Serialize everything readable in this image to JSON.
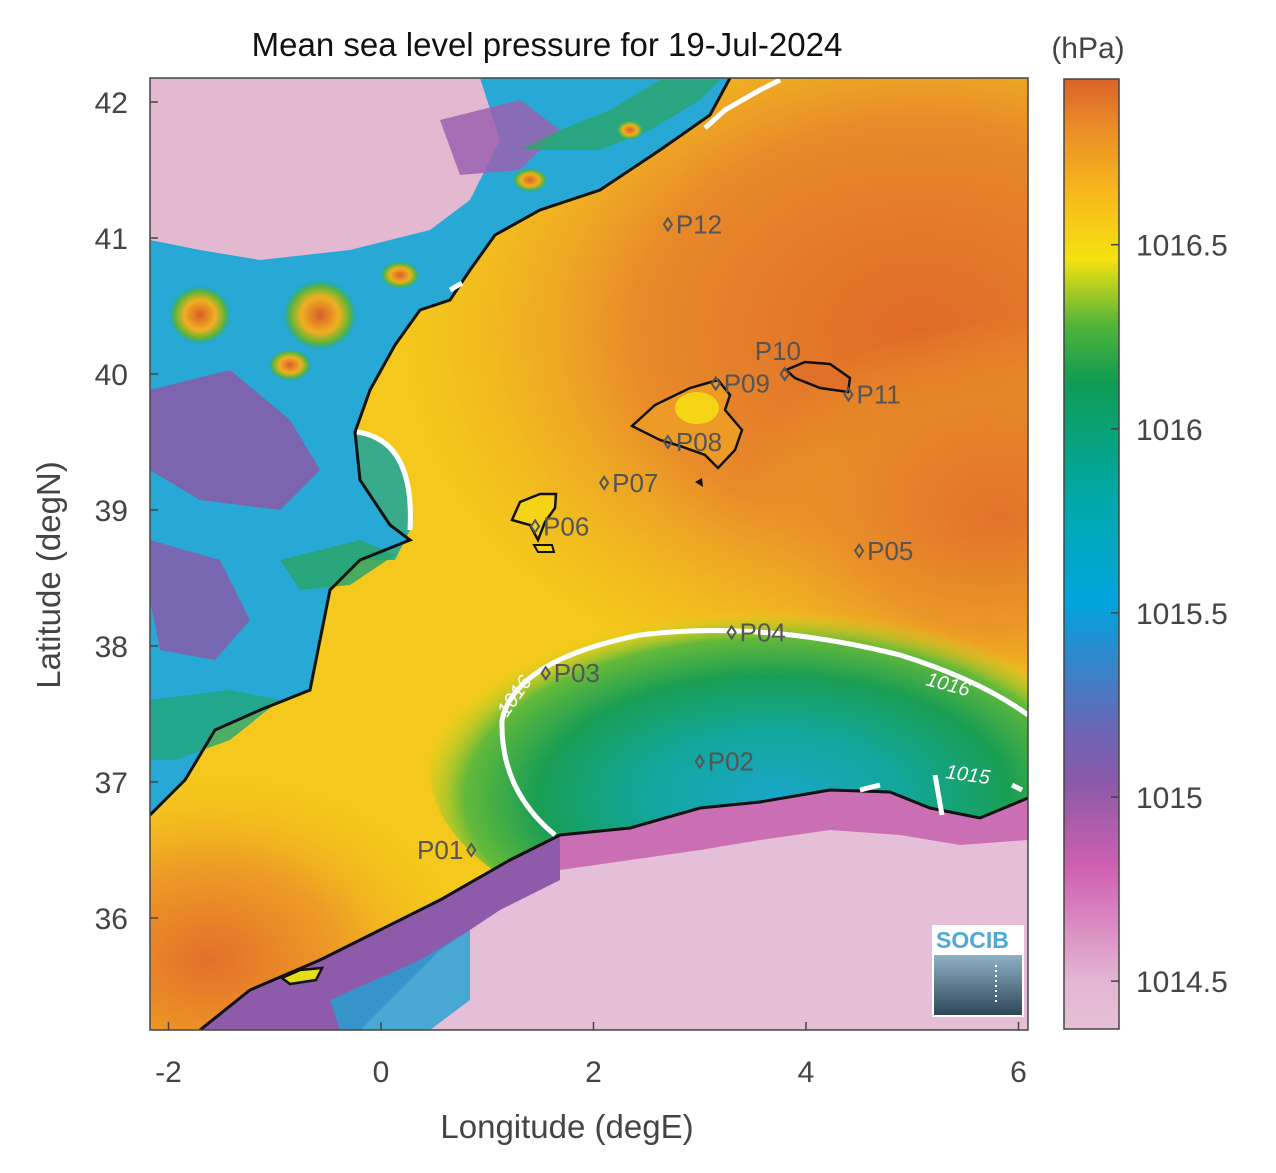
{
  "title": "Mean sea level pressure for 19-Jul-2024",
  "xlabel": "Longitude (degE)",
  "ylabel": "Latitude (degN)",
  "colorbar": {
    "unit": "(hPa)",
    "min": 1014.37,
    "max": 1016.95,
    "ticks": [
      "1014.5",
      "1015",
      "1015.5",
      "1016",
      "1016.5"
    ],
    "colors": [
      "#e6bfd8",
      "#cf60b0",
      "#7f5aa8",
      "#00a4dd",
      "#00a88a",
      "#22a33a",
      "#f5e20f",
      "#f6b81c",
      "#eb8b28",
      "#da6327"
    ]
  },
  "x_ticks": [
    "-2",
    "0",
    "2",
    "4",
    "6"
  ],
  "y_ticks": [
    "36",
    "37",
    "38",
    "39",
    "40",
    "41",
    "42"
  ],
  "contour_labels": [
    "1016",
    "1016",
    "1015"
  ],
  "stations": [
    {
      "name": "P01",
      "lon": 0.85,
      "lat": 36.5
    },
    {
      "name": "P02",
      "lon": 3.0,
      "lat": 37.15
    },
    {
      "name": "P03",
      "lon": 1.55,
      "lat": 37.8
    },
    {
      "name": "P04",
      "lon": 3.3,
      "lat": 38.1
    },
    {
      "name": "P05",
      "lon": 4.5,
      "lat": 38.7
    },
    {
      "name": "P06",
      "lon": 1.45,
      "lat": 38.88
    },
    {
      "name": "P07",
      "lon": 2.1,
      "lat": 39.2
    },
    {
      "name": "P08",
      "lon": 2.7,
      "lat": 39.5
    },
    {
      "name": "P09",
      "lon": 3.15,
      "lat": 39.93
    },
    {
      "name": "P10",
      "lon": 3.8,
      "lat": 40.0
    },
    {
      "name": "P11",
      "lon": 4.4,
      "lat": 39.85
    },
    {
      "name": "P12",
      "lon": 2.7,
      "lat": 41.1
    }
  ],
  "logo": {
    "text": "SOCIB"
  }
}
